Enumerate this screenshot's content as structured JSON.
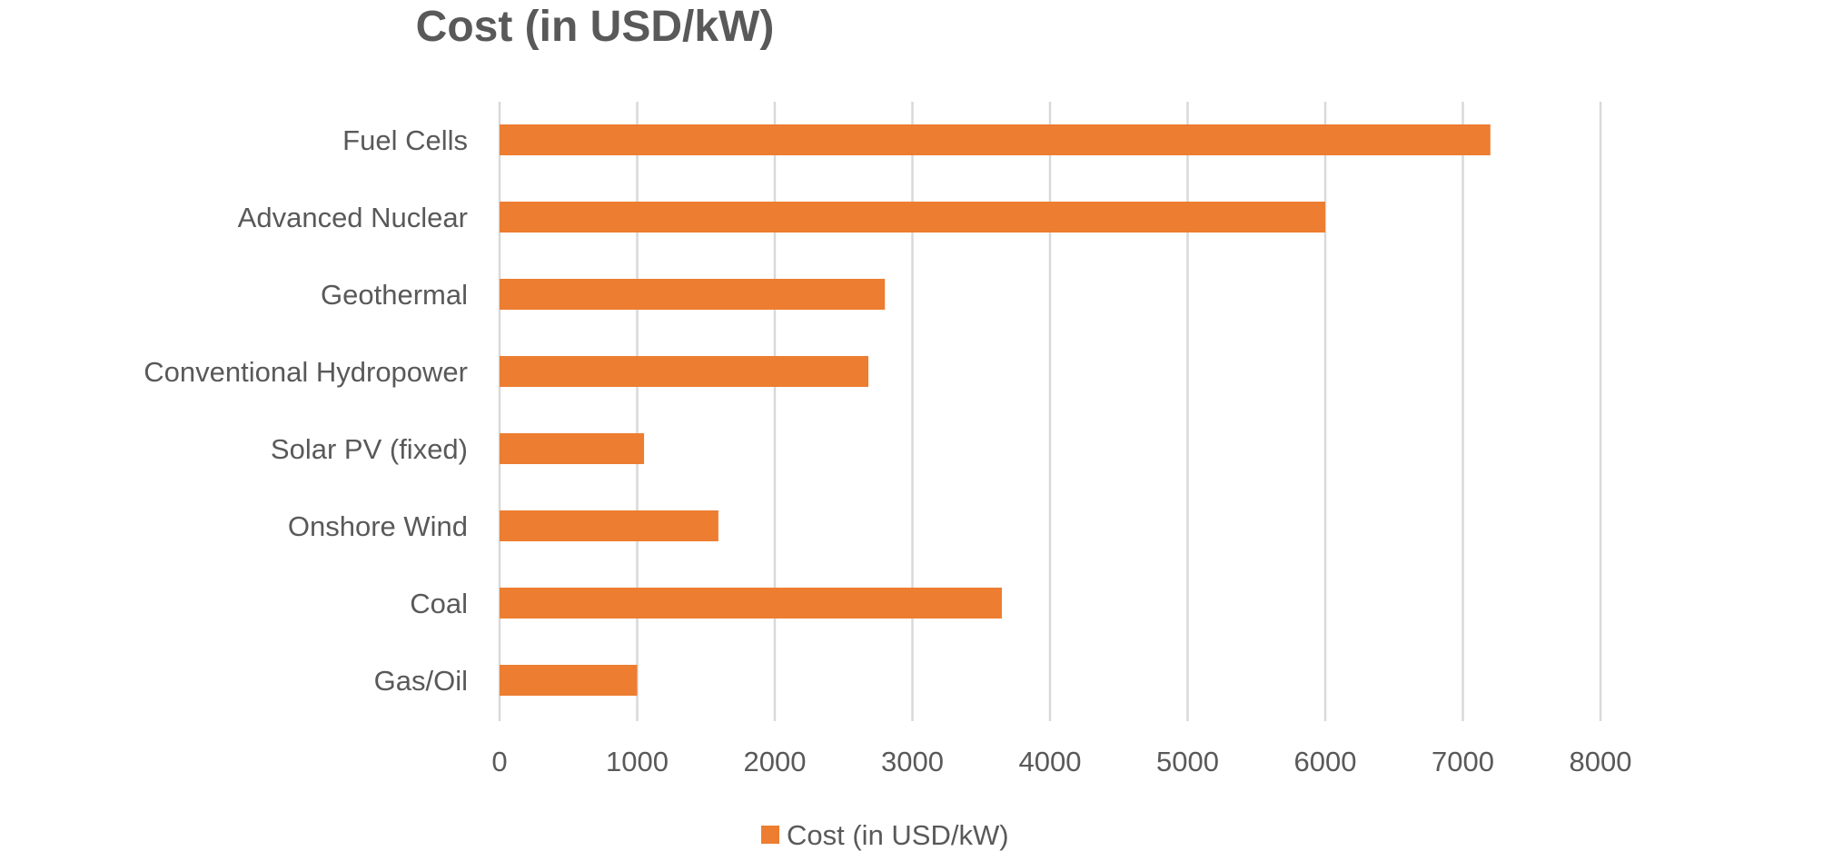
{
  "chart_data": {
    "type": "bar",
    "orientation": "horizontal",
    "title": "Cost (in USD/kW)",
    "categories": [
      "Fuel Cells",
      "Advanced Nuclear",
      "Geothermal",
      "Conventional Hydropower",
      "Solar PV (fixed)",
      "Onshore Wind",
      "Coal",
      "Gas/Oil"
    ],
    "series": [
      {
        "name": "Cost (in USD/kW)",
        "values": [
          7200,
          6000,
          2800,
          2680,
          1050,
          1590,
          3650,
          1000
        ],
        "color": "#ED7D31"
      }
    ],
    "xlim": [
      0,
      8000
    ],
    "xticks": [
      "0",
      "1000",
      "2000",
      "3000",
      "4000",
      "5000",
      "6000",
      "7000",
      "8000"
    ],
    "xlabel": "",
    "ylabel": "",
    "grid": "vertical",
    "legend": "bottom"
  }
}
